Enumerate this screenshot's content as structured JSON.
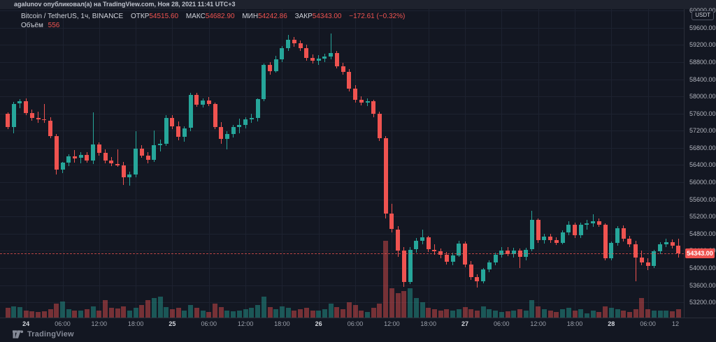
{
  "header": {
    "share_text": "agalunov опубликовал(а) на TradingView.com, Ноя 28, 2021 11:41 UTC+3"
  },
  "legend": {
    "symbol_title": "Bitcoin / TetherUS, 1ч, BINANCE",
    "fields": [
      {
        "label": "ОТКР",
        "value": "54515.60"
      },
      {
        "label": "МАКС",
        "value": "54682.90"
      },
      {
        "label": "МИН",
        "value": "54242.86"
      },
      {
        "label": "ЗАКР",
        "value": "54343.00"
      }
    ],
    "change_text": "−172.61 (−0.32%)",
    "volume_label": "Объём",
    "volume_value": "556"
  },
  "price_scale": {
    "currency_badge": "USDT",
    "tick_values": [
      60000,
      59600,
      59200,
      58800,
      58400,
      58000,
      57600,
      57200,
      56800,
      56400,
      56000,
      55600,
      55200,
      54800,
      54400,
      54000,
      53600,
      53200
    ],
    "last_price": 54343,
    "last_price_label": "54343.00"
  },
  "time_scale": {
    "ticks": [
      {
        "label": "24",
        "i": 3,
        "day": true
      },
      {
        "label": "06:00",
        "i": 9
      },
      {
        "label": "12:00",
        "i": 15
      },
      {
        "label": "18:00",
        "i": 21
      },
      {
        "label": "25",
        "i": 27,
        "day": true
      },
      {
        "label": "06:00",
        "i": 33
      },
      {
        "label": "12:00",
        "i": 39
      },
      {
        "label": "18:00",
        "i": 45
      },
      {
        "label": "26",
        "i": 51,
        "day": true
      },
      {
        "label": "06:00",
        "i": 57
      },
      {
        "label": "12:00",
        "i": 63
      },
      {
        "label": "18:00",
        "i": 69
      },
      {
        "label": "27",
        "i": 75,
        "day": true
      },
      {
        "label": "06:00",
        "i": 81
      },
      {
        "label": "12:00",
        "i": 87
      },
      {
        "label": "18:00",
        "i": 93
      },
      {
        "label": "28",
        "i": 99,
        "day": true
      },
      {
        "label": "06:00",
        "i": 105
      },
      {
        "label": "12",
        "i": 111
      }
    ]
  },
  "footer": {
    "brand": "TradingView"
  },
  "colors": {
    "up": "#26a69a",
    "down": "#ef5350",
    "vol_up": "rgba(38,166,154,0.45)",
    "vol_down": "rgba(239,83,80,0.45)",
    "accent_badge": "#ef5350"
  },
  "chart_data": {
    "type": "candlestick",
    "title": "Bitcoin / TetherUS, 1ч, BINANCE",
    "symbol": "BTC/USDT",
    "interval": "1h",
    "exchange": "BINANCE",
    "quote_badge": "USDT",
    "start_time": "Ноя 23 2021 21:00",
    "end_time": "Ноя 28 2021 11:00",
    "ylim": [
      53000,
      60100
    ],
    "grid": true,
    "last_close": 54343.0,
    "last_change": -172.61,
    "last_change_pct": -0.32,
    "last_volume": 556,
    "columns": [
      "open",
      "high",
      "low",
      "close",
      "volume"
    ],
    "candles": [
      [
        57590,
        57620,
        57230,
        57280,
        640
      ],
      [
        57280,
        57870,
        57140,
        57830,
        730
      ],
      [
        57830,
        57940,
        57720,
        57880,
        680
      ],
      [
        57880,
        57960,
        57560,
        57610,
        450
      ],
      [
        57610,
        57700,
        57440,
        57500,
        410
      ],
      [
        57500,
        57640,
        57380,
        57470,
        360
      ],
      [
        57470,
        57830,
        57390,
        57440,
        410
      ],
      [
        57440,
        57520,
        57030,
        57070,
        550
      ],
      [
        57070,
        57130,
        56180,
        56290,
        910
      ],
      [
        56290,
        56480,
        56210,
        56450,
        1050
      ],
      [
        56450,
        56650,
        56380,
        56600,
        550
      ],
      [
        56600,
        56750,
        56450,
        56560,
        450
      ],
      [
        56560,
        56700,
        56440,
        56640,
        450
      ],
      [
        56640,
        56700,
        56450,
        56500,
        550
      ],
      [
        56500,
        57620,
        56420,
        56880,
        730
      ],
      [
        56880,
        56920,
        56620,
        56680,
        450
      ],
      [
        56680,
        56760,
        56440,
        56500,
        1140
      ],
      [
        56500,
        56580,
        56380,
        56430,
        640
      ],
      [
        56430,
        56760,
        56350,
        56390,
        590
      ],
      [
        56390,
        56480,
        55930,
        56110,
        730
      ],
      [
        56110,
        56250,
        55920,
        56180,
        450
      ],
      [
        56180,
        57190,
        56120,
        56780,
        640
      ],
      [
        56780,
        56860,
        56560,
        56620,
        820
      ],
      [
        56620,
        56700,
        56430,
        56520,
        1140
      ],
      [
        56520,
        57210,
        56470,
        56860,
        1270
      ],
      [
        56860,
        57000,
        56710,
        56900,
        1360
      ],
      [
        56900,
        57560,
        56850,
        57490,
        680
      ],
      [
        57490,
        57560,
        57230,
        57300,
        550
      ],
      [
        57300,
        57410,
        56980,
        57060,
        640
      ],
      [
        57060,
        57300,
        56940,
        57260,
        450
      ],
      [
        57260,
        58090,
        57180,
        58040,
        820
      ],
      [
        58040,
        58090,
        57750,
        57810,
        640
      ],
      [
        57810,
        57950,
        57740,
        57900,
        450
      ],
      [
        57900,
        57990,
        57770,
        57820,
        360
      ],
      [
        57820,
        57860,
        57230,
        57290,
        910
      ],
      [
        57290,
        57400,
        56900,
        57000,
        680
      ],
      [
        57000,
        57180,
        56770,
        57120,
        450
      ],
      [
        57120,
        57330,
        57040,
        57280,
        410
      ],
      [
        57280,
        57480,
        57140,
        57330,
        450
      ],
      [
        57330,
        57520,
        57260,
        57470,
        550
      ],
      [
        57470,
        57590,
        57380,
        57490,
        640
      ],
      [
        57490,
        57950,
        57420,
        57930,
        820
      ],
      [
        57930,
        58760,
        57880,
        58740,
        1360
      ],
      [
        58740,
        58800,
        58510,
        58590,
        680
      ],
      [
        58590,
        58940,
        58560,
        58870,
        550
      ],
      [
        58870,
        59180,
        58800,
        59130,
        730
      ],
      [
        59130,
        59440,
        59060,
        59320,
        640
      ],
      [
        59320,
        59390,
        59150,
        59230,
        450
      ],
      [
        59230,
        59310,
        59060,
        59120,
        550
      ],
      [
        59120,
        59200,
        58830,
        58890,
        640
      ],
      [
        58890,
        58980,
        58760,
        58830,
        450
      ],
      [
        58830,
        58960,
        58740,
        58880,
        450
      ],
      [
        58880,
        58990,
        58790,
        58930,
        550
      ],
      [
        58930,
        59460,
        58870,
        59010,
        910
      ],
      [
        59010,
        59060,
        58650,
        58700,
        680
      ],
      [
        58700,
        58780,
        58500,
        58570,
        550
      ],
      [
        58570,
        58640,
        58120,
        58180,
        1000
      ],
      [
        58180,
        58260,
        57850,
        57920,
        820
      ],
      [
        57920,
        58000,
        57790,
        57850,
        450
      ],
      [
        57850,
        57960,
        57770,
        57890,
        360
      ],
      [
        57890,
        57920,
        57520,
        57590,
        640
      ],
      [
        57590,
        57640,
        56960,
        57020,
        910
      ],
      [
        57020,
        57070,
        55150,
        55260,
        5000
      ],
      [
        55260,
        55500,
        54820,
        54900,
        1910
      ],
      [
        54900,
        54980,
        54250,
        54400,
        1590
      ],
      [
        54400,
        54480,
        53560,
        53680,
        1730
      ],
      [
        53680,
        54480,
        53620,
        54430,
        1910
      ],
      [
        54430,
        54700,
        54350,
        54630,
        1270
      ],
      [
        54630,
        54890,
        54550,
        54710,
        1000
      ],
      [
        54710,
        54750,
        54370,
        54430,
        640
      ],
      [
        54430,
        54560,
        54310,
        54390,
        550
      ],
      [
        54390,
        54450,
        54230,
        54300,
        450
      ],
      [
        54300,
        54380,
        54080,
        54140,
        550
      ],
      [
        54140,
        54350,
        54060,
        54290,
        450
      ],
      [
        54290,
        54640,
        54260,
        54570,
        550
      ],
      [
        54570,
        54620,
        54020,
        54080,
        680
      ],
      [
        54080,
        54160,
        53720,
        53790,
        550
      ],
      [
        53790,
        53860,
        53550,
        53690,
        450
      ],
      [
        53690,
        54000,
        53640,
        53960,
        730
      ],
      [
        53960,
        54180,
        53900,
        54130,
        550
      ],
      [
        54130,
        54360,
        54070,
        54310,
        450
      ],
      [
        54310,
        54480,
        54240,
        54400,
        360
      ],
      [
        54400,
        54480,
        54280,
        54330,
        410
      ],
      [
        54330,
        54470,
        54250,
        54410,
        450
      ],
      [
        54410,
        54450,
        53990,
        54260,
        550
      ],
      [
        54260,
        54470,
        54180,
        54430,
        450
      ],
      [
        54430,
        55330,
        54380,
        55120,
        1140
      ],
      [
        55120,
        55160,
        54580,
        54650,
        730
      ],
      [
        54650,
        54790,
        54560,
        54730,
        550
      ],
      [
        54730,
        54800,
        54590,
        54650,
        450
      ],
      [
        54650,
        54720,
        54530,
        54590,
        360
      ],
      [
        54590,
        54870,
        54550,
        54830,
        550
      ],
      [
        54830,
        55090,
        54760,
        55010,
        640
      ],
      [
        55010,
        55060,
        54700,
        54760,
        450
      ],
      [
        54760,
        55060,
        54700,
        55010,
        550
      ],
      [
        55010,
        55120,
        54900,
        55040,
        270
      ],
      [
        55040,
        55250,
        54960,
        55090,
        450
      ],
      [
        55090,
        55150,
        54950,
        55000,
        360
      ],
      [
        55000,
        55040,
        54180,
        54230,
        730
      ],
      [
        54230,
        54620,
        54170,
        54580,
        640
      ],
      [
        54580,
        54980,
        54520,
        54930,
        550
      ],
      [
        54930,
        54990,
        54620,
        54680,
        450
      ],
      [
        54680,
        54750,
        54480,
        54550,
        360
      ],
      [
        54550,
        54640,
        53690,
        54240,
        550
      ],
      [
        54240,
        54400,
        54060,
        54130,
        1270
      ],
      [
        54130,
        54220,
        53950,
        54050,
        550
      ],
      [
        54050,
        54420,
        54000,
        54390,
        450
      ],
      [
        54390,
        54600,
        54330,
        54550,
        450
      ],
      [
        54550,
        54680,
        54480,
        54600,
        450
      ],
      [
        54600,
        54660,
        54450,
        54515.6,
        410
      ],
      [
        54515.6,
        54682.9,
        54242.86,
        54343,
        556
      ]
    ]
  }
}
